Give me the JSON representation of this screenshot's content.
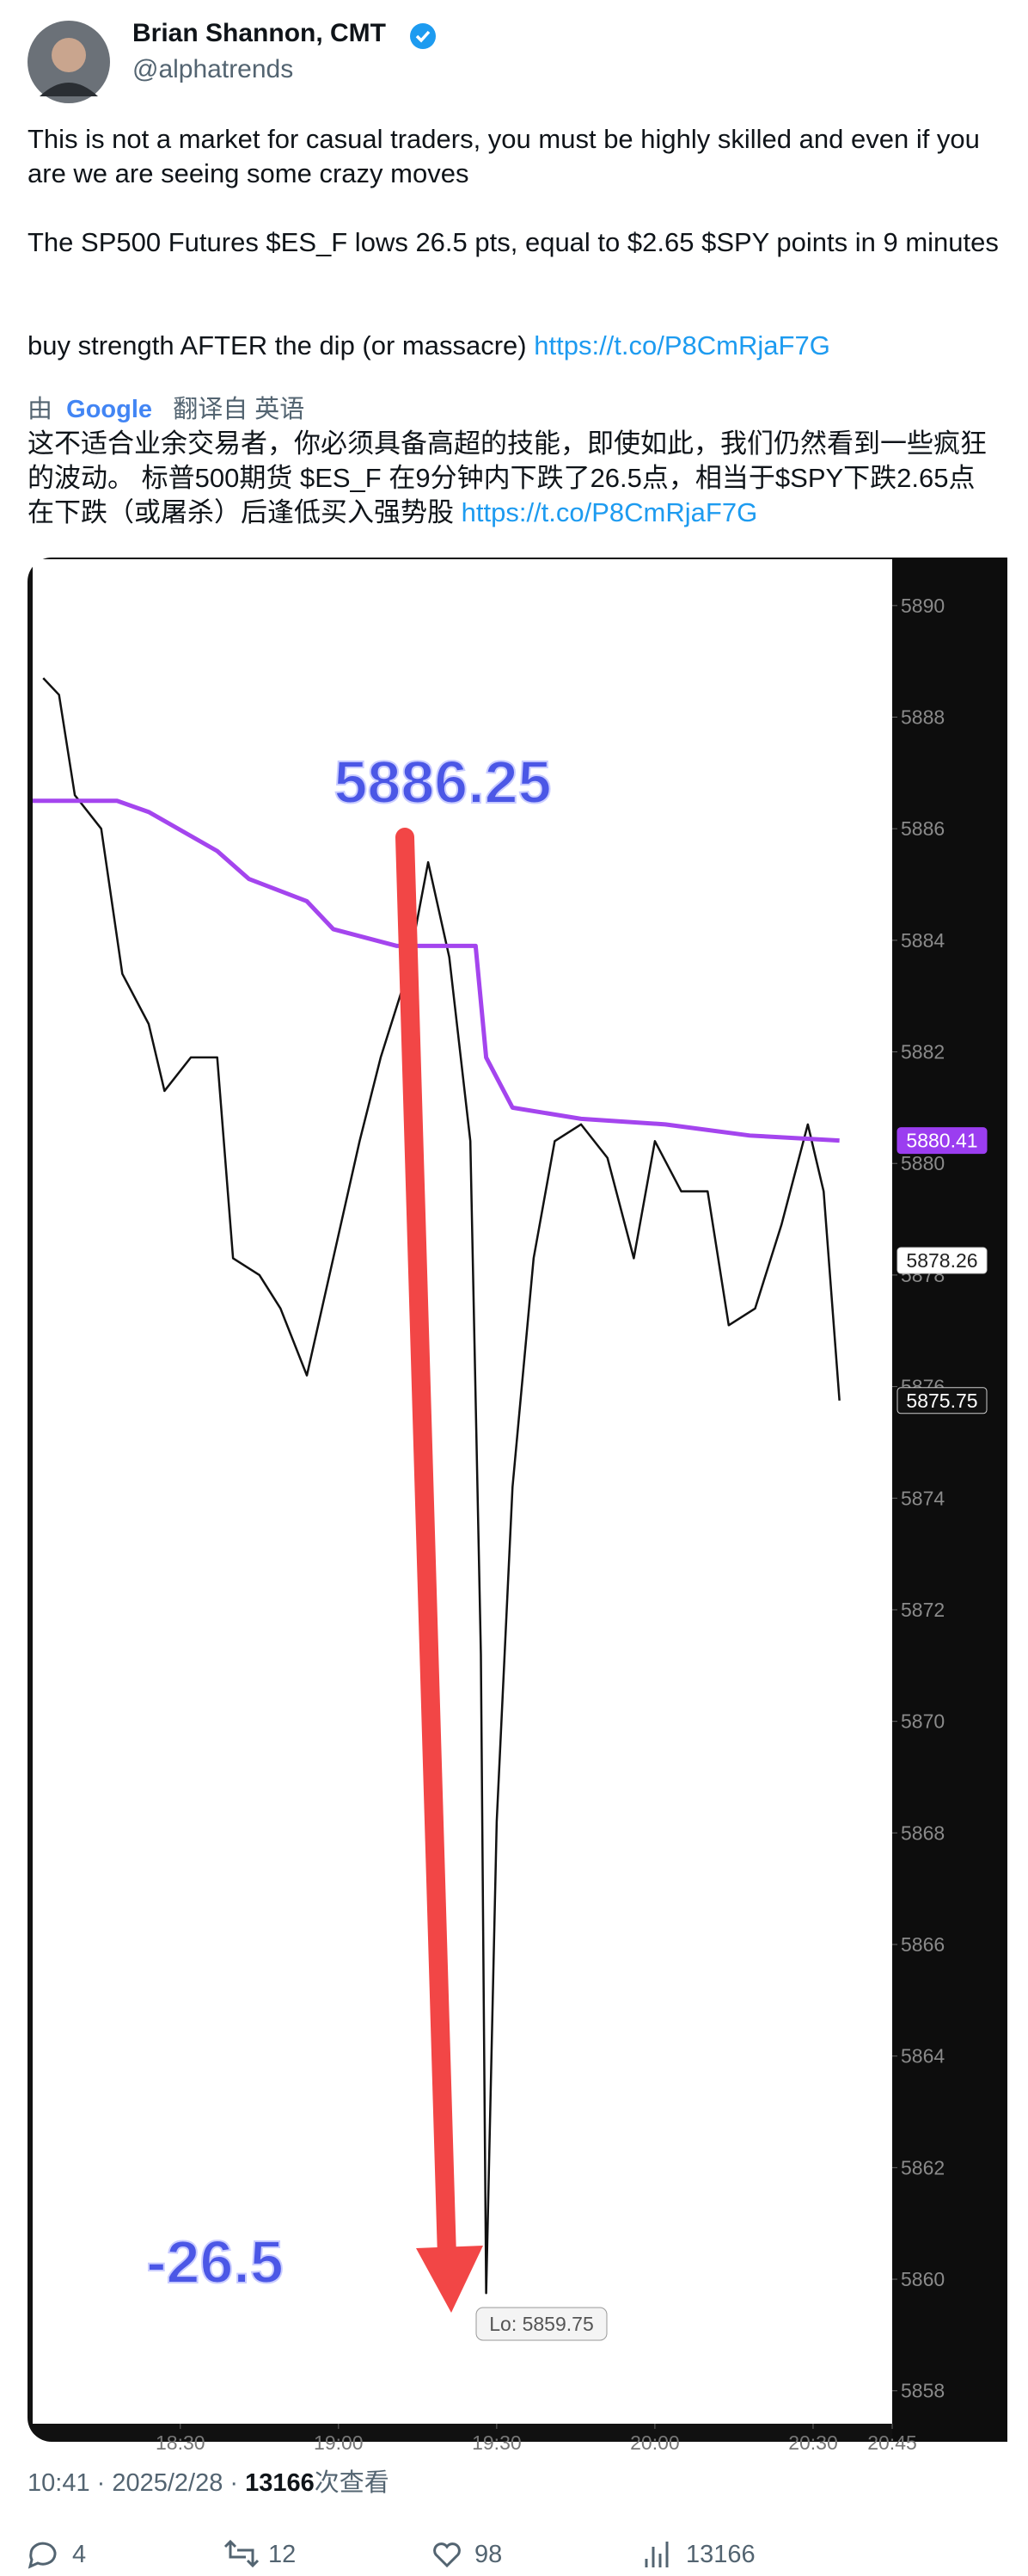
{
  "tweet": {
    "author_name": "Brian Shannon, CMT",
    "handle": "@alphatrends",
    "paragraphs": [
      "This is not a market for casual traders, you must be highly skilled and even if you are we are seeing some crazy moves",
      "The SP500 Futures $ES_F lows 26.5 pts, equal to $2.65 $SPY points in 9 minutes",
      "buy strength AFTER the dip (or massacre)"
    ],
    "link": "https://t.co/P8CmRjaF7G",
    "translation_by": "由",
    "translation_provider": "Google",
    "translated_from": "翻译自 英语",
    "translation": "这不适合业余交易者，你必须具备高超的技能，即使如此，我们仍然看到一些疯狂的波动。 标普500期货 $ES_F 在9分钟内下跌了26.5点，相当于$SPY下跌2.65点 在下跌（或屠杀）后逢低买入强势股",
    "timestamp": "10:41 · 2025/2/28 ·",
    "views": 13166,
    "views_label": "次查看",
    "replies": 4,
    "retweets": 12,
    "likes": 98,
    "view_count": 13166
  },
  "chart_data": {
    "type": "line",
    "series": [
      {
        "name": "Price",
        "color": "#111111",
        "x": [
          1084,
          1087,
          1090,
          1095,
          1099,
          1104,
          1107,
          1112,
          1117,
          1120,
          1125,
          1129,
          1134,
          1139,
          1144,
          1148,
          1153,
          1157,
          1161,
          1165,
          1167,
          1168,
          1170,
          1173,
          1177,
          1181,
          1186,
          1191,
          1196,
          1200,
          1205,
          1210,
          1214,
          1219,
          1224,
          1229,
          1232,
          1235
        ],
        "values": [
          5888.7,
          5888.4,
          5886.6,
          5886,
          5883.4,
          5882.5,
          5881.3,
          5881.9,
          5881.9,
          5878.3,
          5878,
          5877.4,
          5876.2,
          5878.3,
          5880.4,
          5881.9,
          5883.4,
          5885.4,
          5883.7,
          5880.4,
          5871.2,
          5859.75,
          5868.2,
          5874.2,
          5878.3,
          5880.4,
          5880.7,
          5880.1,
          5878.3,
          5880.4,
          5879.5,
          5879.5,
          5877.1,
          5877.4,
          5878.9,
          5880.7,
          5879.5,
          5875.75
        ]
      },
      {
        "name": "VWAP",
        "color": "#a445ee",
        "x": [
          1082,
          1098,
          1104,
          1117,
          1123,
          1134,
          1139,
          1151,
          1166,
          1168,
          1173,
          1186,
          1202,
          1218,
          1235
        ],
        "values": [
          5886.5,
          5886.5,
          5886.3,
          5885.6,
          5885.1,
          5884.7,
          5884.2,
          5883.9,
          5883.9,
          5881.9,
          5881,
          5880.8,
          5880.7,
          5880.5,
          5880.41
        ]
      }
    ],
    "xlim": [
      1082,
      1245
    ],
    "xticks": [
      {
        "value": 1110,
        "label": "18:30"
      },
      {
        "value": 1140,
        "label": "19:00"
      },
      {
        "value": 1170,
        "label": "19:30"
      },
      {
        "value": 1200,
        "label": "20:00"
      },
      {
        "value": 1230,
        "label": "20:30"
      },
      {
        "value": 1245,
        "label": "20:45"
      }
    ],
    "ylim": [
      5857.41,
      5890.83
    ],
    "yticks": [
      5858,
      5860,
      5862,
      5864,
      5866,
      5868,
      5870,
      5872,
      5874,
      5876,
      5878,
      5880,
      5882,
      5884,
      5886,
      5888,
      5890
    ],
    "price_tags": [
      {
        "value": 5880.41,
        "color": "#9b3df0"
      },
      {
        "value": 5878.26,
        "color": "#ffffff"
      },
      {
        "value": 5875.75,
        "color": "#111111"
      }
    ],
    "annotations": [
      "5886.25",
      "-26.5",
      "Lo: 5859.75"
    ]
  }
}
